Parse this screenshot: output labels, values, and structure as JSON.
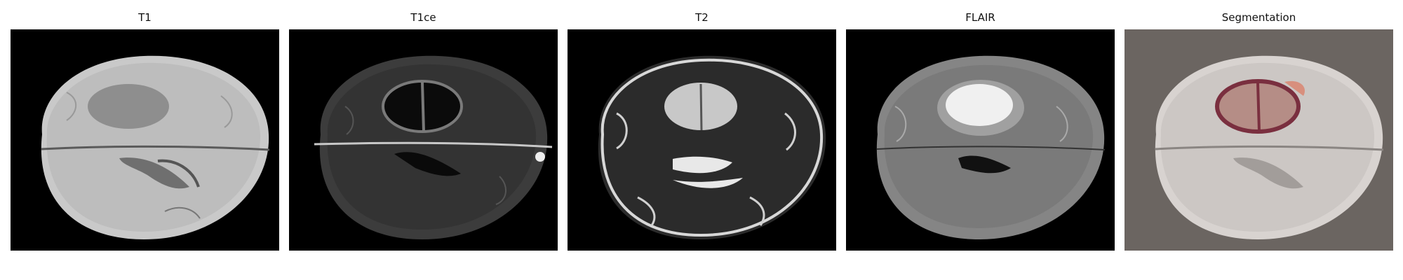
{
  "panels": [
    {
      "title": "T1",
      "modality": "t1"
    },
    {
      "title": "T1ce",
      "modality": "t1ce"
    },
    {
      "title": "T2",
      "modality": "t2"
    },
    {
      "title": "FLAIR",
      "modality": "flair"
    },
    {
      "title": "Segmentation",
      "modality": "segmentation-overlay"
    }
  ],
  "colors": {
    "background": "#000000",
    "segmentation_background": "#6b6561",
    "tumor_core": "#b58d86",
    "tumor_outline": "#7a2f3f",
    "edema": "#d88f7d"
  }
}
